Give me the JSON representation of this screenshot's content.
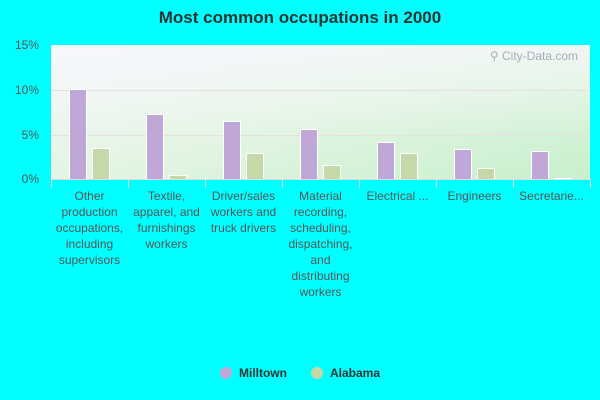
{
  "chart_data": {
    "type": "bar",
    "title": "Most common occupations in 2000",
    "xlabel": "",
    "ylabel": "",
    "ylim": [
      0,
      15
    ],
    "yticks": [
      "0%",
      "5%",
      "10%",
      "15%"
    ],
    "grid": true,
    "legend_position": "bottom",
    "categories": [
      "Other production occupations, including supervisors",
      "Textile, apparel, and furnishings workers",
      "Driver/sales workers and truck drivers",
      "Material recording, scheduling, dispatching, and distributing workers",
      "Electrical ...",
      "Engineers",
      "Secretarie..."
    ],
    "series": [
      {
        "name": "Milltown",
        "color": "#BFA8D8",
        "values": [
          10.1,
          7.3,
          6.5,
          5.6,
          4.1,
          3.4,
          3.1
        ]
      },
      {
        "name": "Alabama",
        "color": "#C4D8A8",
        "values": [
          3.5,
          0.5,
          2.9,
          1.6,
          2.9,
          1.2,
          0.1
        ]
      }
    ]
  },
  "watermark": "City-Data.com",
  "legend": [
    {
      "label": "Milltown",
      "color": "#BFA8D8"
    },
    {
      "label": "Alabama",
      "color": "#C4D8A8"
    }
  ]
}
